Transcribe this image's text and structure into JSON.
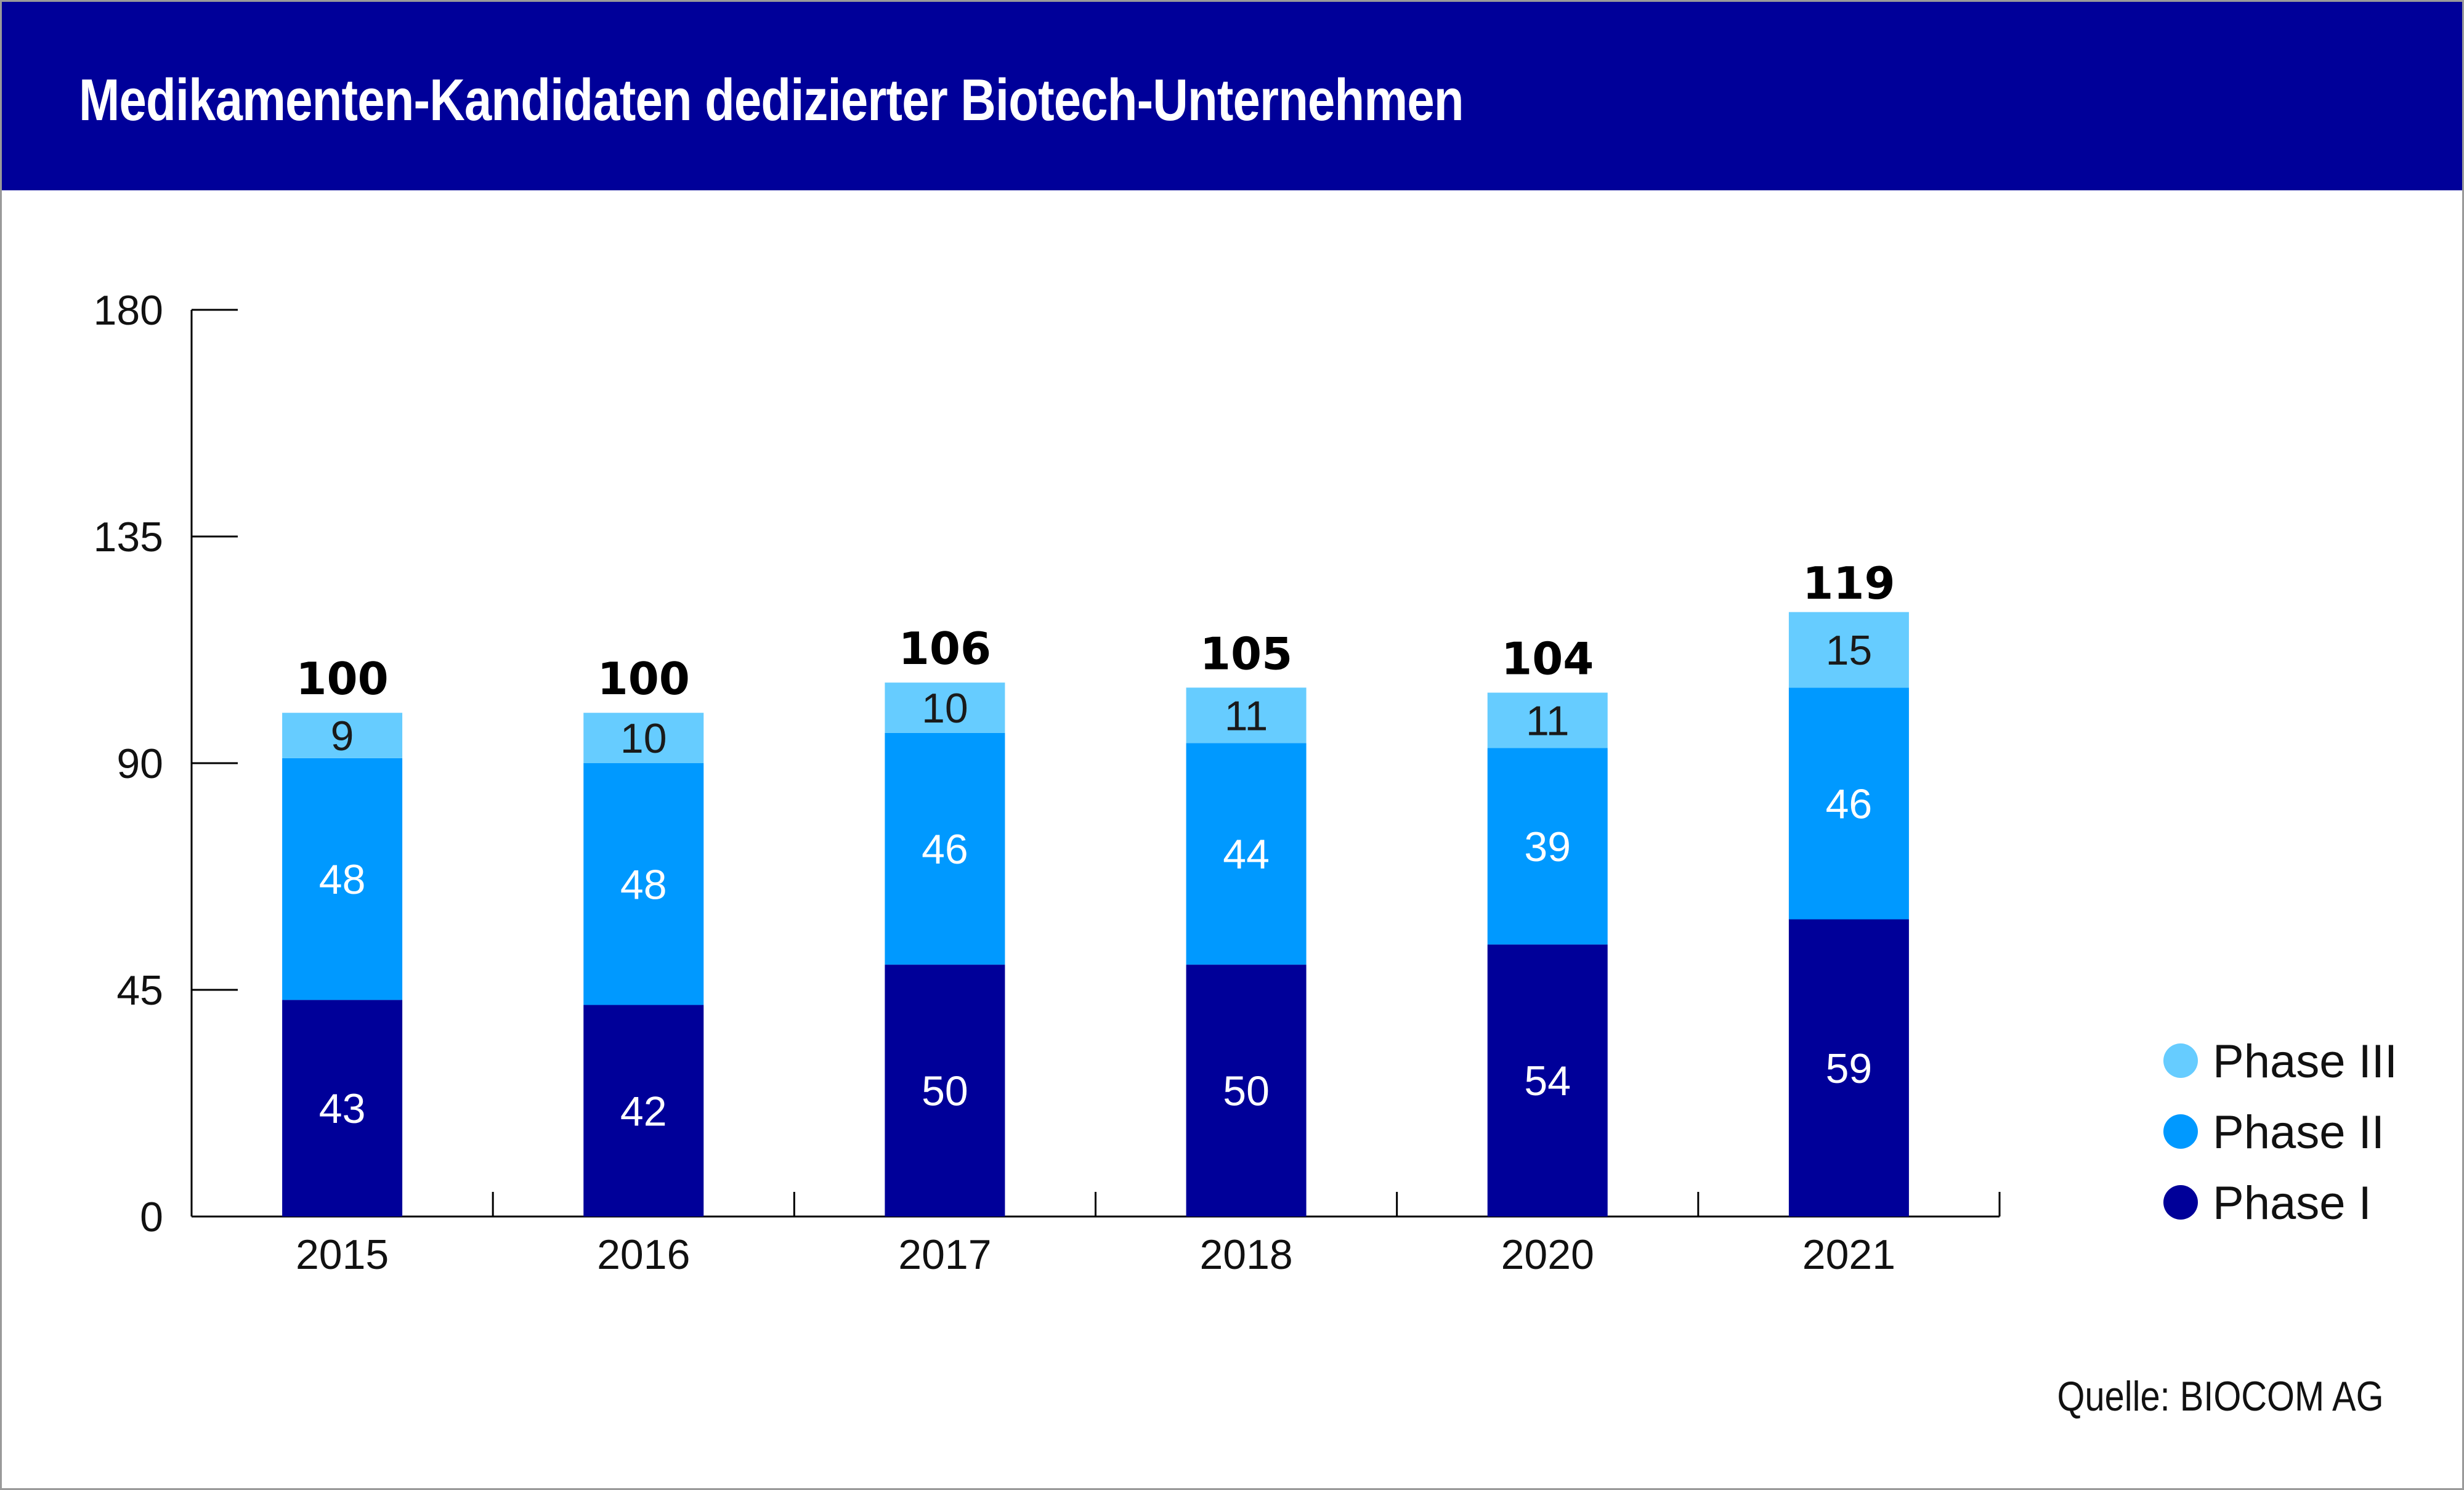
{
  "chart_data": {
    "type": "bar",
    "stacked": true,
    "title": "Medikamenten-Kandidaten dedizierter Biotech-Unternehmen",
    "categories": [
      "2015",
      "2016",
      "2017",
      "2018",
      "2020",
      "2021"
    ],
    "series": [
      {
        "name": "Phase I",
        "color": "#000099",
        "label_color": "#ffffff",
        "values": [
          43,
          42,
          50,
          50,
          54,
          59
        ]
      },
      {
        "name": "Phase II",
        "color": "#0099ff",
        "label_color": "#ffffff",
        "values": [
          48,
          48,
          46,
          44,
          39,
          46
        ]
      },
      {
        "name": "Phase III",
        "color": "#66ccff",
        "label_color": "#1a1a1a",
        "values": [
          9,
          10,
          10,
          11,
          11,
          15
        ]
      }
    ],
    "totals": [
      100,
      100,
      106,
      105,
      104,
      119
    ],
    "ylim": [
      0,
      180
    ],
    "yticks": [
      0,
      45,
      90,
      135,
      180
    ],
    "legend_position": "right",
    "grid": false
  },
  "legend": {
    "order": [
      "Phase III",
      "Phase II",
      "Phase I"
    ]
  },
  "source": "Quelle: BIOCOM AG"
}
